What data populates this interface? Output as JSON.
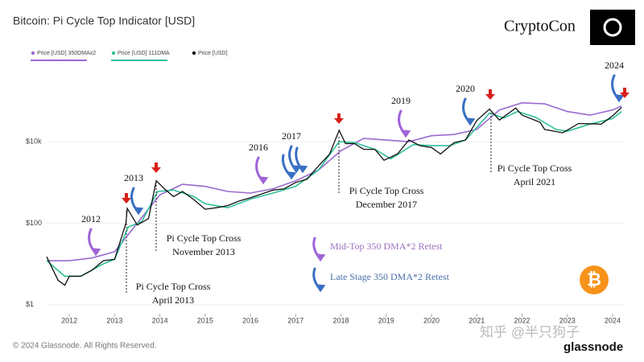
{
  "chart_data": {
    "type": "line",
    "title": "Bitcoin: Pi Cycle Top Indicator [USD]",
    "brand": "CryptoCon",
    "copyright": "© 2024 Glassnode. All Rights Reserved.",
    "source": "glassnode",
    "watermark": "知乎 @半只狗子",
    "log_scale": true,
    "grid": true,
    "legend_position": "top-left",
    "xlim": [
      2011.5,
      2024.25
    ],
    "xticks": [
      2012,
      2013,
      2014,
      2015,
      2016,
      2017,
      2018,
      2019,
      2020,
      2021,
      2022,
      2023,
      2024
    ],
    "ylim": [
      0.6,
      400000
    ],
    "yticks": [
      {
        "value": 1,
        "label": "$1"
      },
      {
        "value": 100,
        "label": "$100"
      },
      {
        "value": 10000,
        "label": "$10k"
      }
    ],
    "series": [
      {
        "name": "Price [USD] 350DMAx2",
        "color": "#9b6ad0",
        "x": [
          2011.5,
          2012.0,
          2012.5,
          2013.0,
          2013.5,
          2014.0,
          2014.5,
          2015.0,
          2015.5,
          2016.0,
          2016.5,
          2017.0,
          2017.5,
          2018.0,
          2018.5,
          2019.0,
          2019.5,
          2020.0,
          2020.5,
          2021.0,
          2021.5,
          2022.0,
          2022.5,
          2023.0,
          2023.5,
          2024.0,
          2024.2
        ],
        "values": [
          12,
          12,
          14,
          20,
          100,
          500,
          900,
          800,
          600,
          550,
          700,
          1100,
          2000,
          6000,
          12000,
          11000,
          10000,
          14000,
          15000,
          20000,
          60000,
          90000,
          85000,
          55000,
          45000,
          60000,
          75000
        ]
      },
      {
        "name": "Price [USD] 111DMA",
        "color": "#2fbf9a",
        "x": [
          2011.5,
          2011.9,
          2012.25,
          2012.75,
          2013.0,
          2013.3,
          2013.6,
          2013.95,
          2014.3,
          2014.75,
          2015.0,
          2015.5,
          2016.0,
          2016.5,
          2017.0,
          2017.5,
          2017.96,
          2018.3,
          2018.75,
          2019.1,
          2019.6,
          2020.0,
          2020.4,
          2020.75,
          2021.28,
          2021.6,
          2021.9,
          2022.3,
          2022.75,
          2023.0,
          2023.5,
          2024.0,
          2024.2
        ],
        "values": [
          12,
          5,
          5,
          10,
          13,
          80,
          110,
          600,
          650,
          450,
          300,
          240,
          390,
          550,
          800,
          2000,
          10000,
          9500,
          6500,
          3800,
          8500,
          8000,
          8000,
          11000,
          50000,
          38000,
          55000,
          40000,
          20000,
          18000,
          27000,
          37000,
          55000
        ]
      },
      {
        "name": "Price [USD]",
        "color": "#111111",
        "x": [
          2011.5,
          2011.75,
          2011.9,
          2012.0,
          2012.25,
          2012.5,
          2012.75,
          2013.0,
          2013.25,
          2013.28,
          2013.5,
          2013.75,
          2013.92,
          2014.1,
          2014.3,
          2014.5,
          2014.75,
          2015.0,
          2015.25,
          2015.5,
          2015.75,
          2016.0,
          2016.5,
          2016.75,
          2017.0,
          2017.25,
          2017.5,
          2017.75,
          2017.96,
          2018.1,
          2018.3,
          2018.5,
          2018.75,
          2018.95,
          2019.25,
          2019.5,
          2019.75,
          2020.0,
          2020.2,
          2020.5,
          2020.75,
          2021.0,
          2021.28,
          2021.5,
          2021.86,
          2022.0,
          2022.4,
          2022.5,
          2022.9,
          2023.25,
          2023.75,
          2024.0,
          2024.2
        ],
        "values": [
          15,
          4,
          3,
          5,
          5,
          7,
          12,
          13,
          100,
          230,
          90,
          130,
          1100,
          700,
          450,
          600,
          380,
          220,
          240,
          270,
          350,
          420,
          650,
          700,
          1000,
          1200,
          2500,
          5000,
          19000,
          9000,
          9000,
          6500,
          6500,
          3500,
          5000,
          11000,
          8000,
          7200,
          5000,
          9500,
          11000,
          33000,
          63000,
          34000,
          67000,
          45000,
          30000,
          20000,
          16500,
          28000,
          27000,
          43000,
          70000
        ]
      }
    ],
    "year_notes": [
      "2012",
      "2013",
      "2016",
      "2017",
      "2019",
      "2020",
      "2024"
    ],
    "callouts": [
      {
        "title": "Pi Cycle Top Cross",
        "date": "April 2013"
      },
      {
        "title": "Pi Cycle Top Cross",
        "date": "November 2013"
      },
      {
        "title": "Pi Cycle Top Cross",
        "date": "December 2017"
      },
      {
        "title": "Pi Cycle Top Cross",
        "date": "April 2021"
      }
    ],
    "arrow_legend": [
      "Mid-Top 350 DMA*2 Retest",
      "Late Stage 350 DMA*2 Retest"
    ]
  }
}
